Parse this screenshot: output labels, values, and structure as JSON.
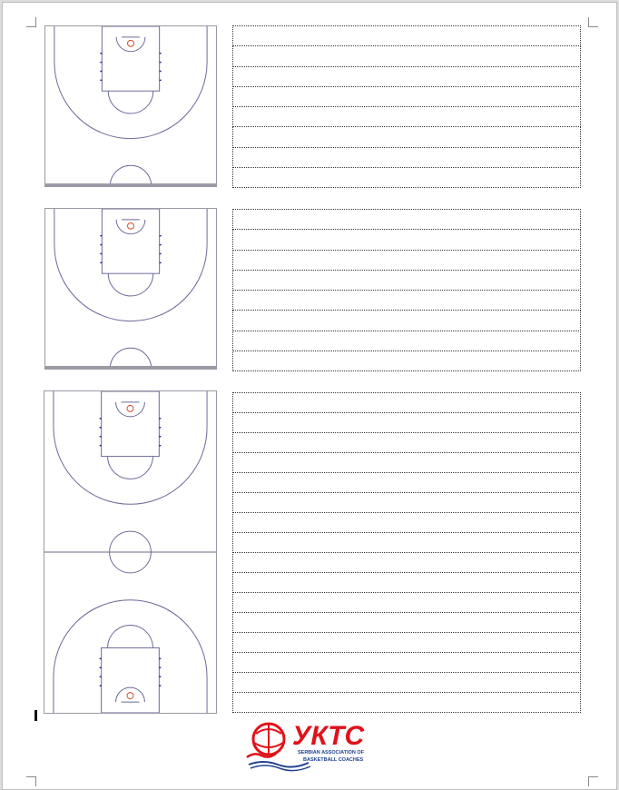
{
  "page": {
    "type": "basketball-coaching-notes-sheet"
  },
  "sections": [
    {
      "court": "half-court",
      "note_lines": 8
    },
    {
      "court": "half-court",
      "note_lines": 8
    },
    {
      "court": "full-court",
      "note_lines": 16
    }
  ],
  "logo": {
    "brand": "УКТС",
    "line1": "SERBIAN ASSOCIATION OF",
    "line2": "BASKETBALL COACHES"
  },
  "colors": {
    "court_line": "#6a6a9a",
    "hoop": "#d94b2b",
    "logo_red": "#e0121b",
    "logo_blue": "#1f3f8f",
    "note_border": "#333333"
  }
}
